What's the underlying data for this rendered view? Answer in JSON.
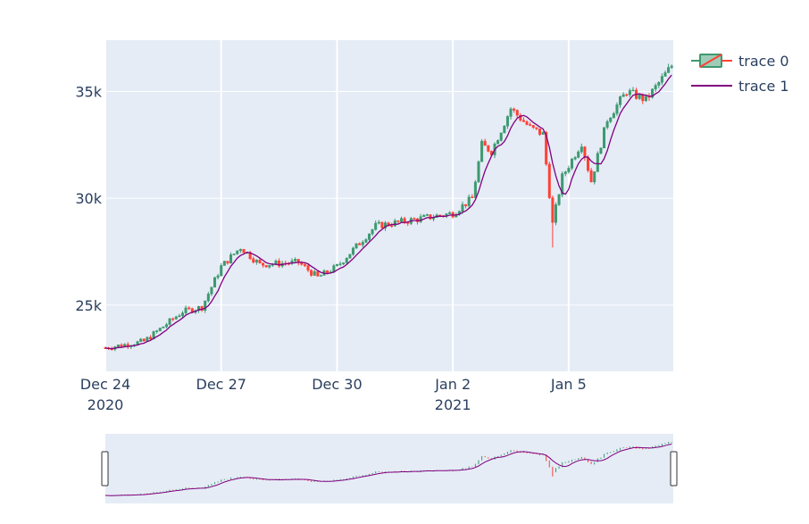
{
  "colors": {
    "plot_bg": "#e5ecf6",
    "grid": "#ffffff",
    "text": "#2a3f5f",
    "increasing": "#3d9970",
    "decreasing": "#ff4136",
    "ma_line": "#800080"
  },
  "chart_data": {
    "type": "candlestick",
    "title": "",
    "xlabel": "",
    "ylabel": "",
    "x_range": [
      "2020-12-24 00:00",
      "2021-01-07 17:00"
    ],
    "ylim": [
      21900,
      37400
    ],
    "x_ticks": [
      {
        "date": "2020-12-24",
        "label": "Dec 24",
        "sub": "2020"
      },
      {
        "date": "2020-12-27",
        "label": "Dec 27",
        "sub": ""
      },
      {
        "date": "2020-12-30",
        "label": "Dec 30",
        "sub": ""
      },
      {
        "date": "2021-01-02",
        "label": "Jan 2",
        "sub": "2021"
      },
      {
        "date": "2021-01-05",
        "label": "Jan 5",
        "sub": ""
      }
    ],
    "y_ticks": [
      {
        "value": 25000,
        "label": "25k"
      },
      {
        "value": 30000,
        "label": "30k"
      },
      {
        "value": 35000,
        "label": "35k"
      }
    ],
    "grid": true,
    "legend": {
      "position": "top-right",
      "entries": [
        {
          "name": "trace 0",
          "kind": "candlestick"
        },
        {
          "name": "trace 1",
          "kind": "line"
        }
      ]
    },
    "rangeslider": true,
    "series": [
      {
        "name": "trace 0",
        "interval_hours": 2,
        "approx_close_anchors": [
          {
            "x": "2020-12-24 00:00",
            "y": 23000
          },
          {
            "x": "2020-12-25 00:00",
            "y": 23300
          },
          {
            "x": "2020-12-26 00:00",
            "y": 24700
          },
          {
            "x": "2020-12-26 12:00",
            "y": 24900
          },
          {
            "x": "2020-12-27 00:00",
            "y": 26800
          },
          {
            "x": "2020-12-27 12:00",
            "y": 27700
          },
          {
            "x": "2020-12-28 00:00",
            "y": 26900
          },
          {
            "x": "2020-12-29 00:00",
            "y": 27000
          },
          {
            "x": "2020-12-29 12:00",
            "y": 26300
          },
          {
            "x": "2020-12-30 00:00",
            "y": 26800
          },
          {
            "x": "2020-12-31 00:00",
            "y": 28700
          },
          {
            "x": "2021-01-01 00:00",
            "y": 29000
          },
          {
            "x": "2021-01-02 00:00",
            "y": 29300
          },
          {
            "x": "2021-01-02 12:00",
            "y": 30000
          },
          {
            "x": "2021-01-02 18:00",
            "y": 32500
          },
          {
            "x": "2021-01-03 00:00",
            "y": 32200
          },
          {
            "x": "2021-01-03 12:00",
            "y": 34200
          },
          {
            "x": "2021-01-04 00:00",
            "y": 33300
          },
          {
            "x": "2021-01-04 08:00",
            "y": 33000
          },
          {
            "x": "2021-01-04 14:00",
            "y": 28800
          },
          {
            "x": "2021-01-04 20:00",
            "y": 31000
          },
          {
            "x": "2021-01-05 08:00",
            "y": 32600
          },
          {
            "x": "2021-01-05 14:00",
            "y": 30800
          },
          {
            "x": "2021-01-06 00:00",
            "y": 33700
          },
          {
            "x": "2021-01-06 12:00",
            "y": 35000
          },
          {
            "x": "2021-01-07 00:00",
            "y": 34600
          },
          {
            "x": "2021-01-07 16:00",
            "y": 36200
          }
        ],
        "notable_wicks": [
          {
            "x": "2021-01-02 14:00",
            "low": 30000
          },
          {
            "x": "2021-01-04 14:00",
            "low": 27700
          },
          {
            "x": "2021-01-07 15:00",
            "high": 36700
          }
        ]
      },
      {
        "name": "trace 1",
        "description": "moving average of closes (approx. 6-period)"
      }
    ]
  }
}
